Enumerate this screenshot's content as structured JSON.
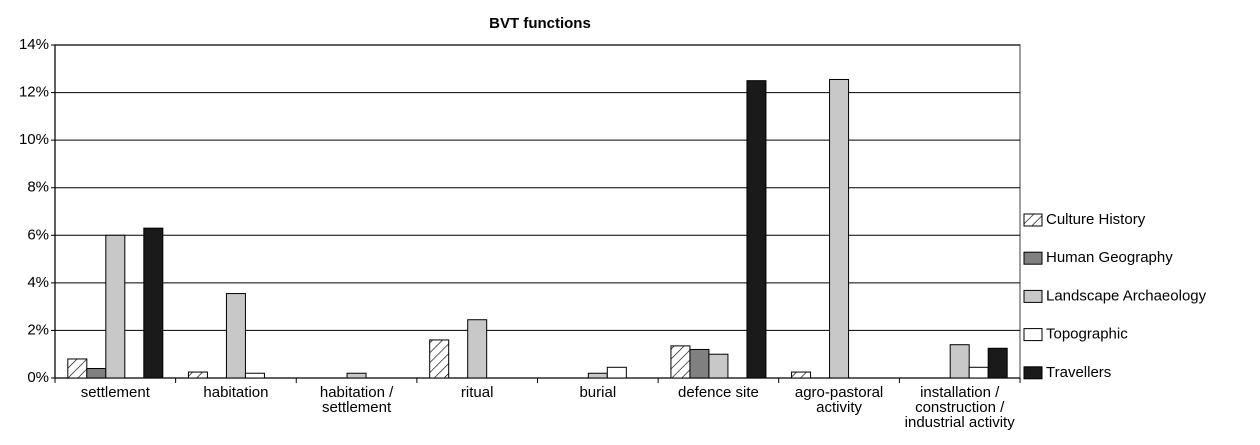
{
  "chart_data": {
    "type": "bar",
    "title": "BVT functions",
    "categories": [
      "settlement",
      "habitation",
      "habitation / settlement",
      "ritual",
      "burial",
      "defence site",
      "agro-pastoral activity",
      "installation / construction / industrial activity"
    ],
    "series": [
      {
        "name": "Culture History",
        "color": "#ffffff",
        "pattern": "hatch",
        "values": [
          0.8,
          0.25,
          0,
          1.6,
          0,
          1.35,
          0.25,
          0
        ]
      },
      {
        "name": "Human Geography",
        "color": "#808080",
        "values": [
          0.4,
          0,
          0,
          0,
          0,
          1.2,
          0,
          0
        ]
      },
      {
        "name": "Landscape Archaeology",
        "color": "#c8c8c8",
        "values": [
          6.0,
          3.55,
          0.2,
          2.45,
          0.2,
          1.0,
          12.55,
          1.4
        ]
      },
      {
        "name": "Topographic",
        "color": "#ffffff",
        "values": [
          0,
          0.2,
          0,
          0,
          0.45,
          0,
          0,
          0.45
        ]
      },
      {
        "name": "Travellers",
        "color": "#1a1a1a",
        "values": [
          6.3,
          0,
          0,
          0,
          0,
          12.5,
          0,
          1.25
        ]
      }
    ],
    "ylim": [
      0,
      14
    ],
    "yticks": [
      {
        "value": 0,
        "label": "0%"
      },
      {
        "value": 2,
        "label": "2%"
      },
      {
        "value": 4,
        "label": "4%"
      },
      {
        "value": 6,
        "label": "6%"
      },
      {
        "value": 8,
        "label": "8%"
      },
      {
        "value": 10,
        "label": "10%"
      },
      {
        "value": 12,
        "label": "12%"
      },
      {
        "value": 14,
        "label": "14%"
      }
    ],
    "grid": true,
    "legend": "right"
  }
}
